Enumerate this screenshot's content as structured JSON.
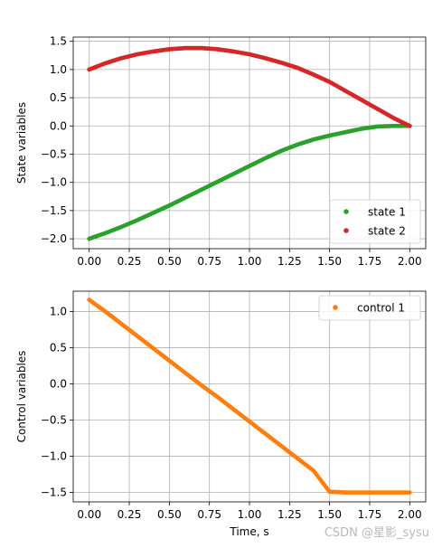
{
  "watermark": "CSDN @星影_sysu",
  "chart_data": [
    {
      "type": "scatter",
      "ylabel": "State variables",
      "xlim": [
        -0.1,
        2.1
      ],
      "ylim": [
        -2.175,
        1.575
      ],
      "xticks": [
        0.0,
        0.25,
        0.5,
        0.75,
        1.0,
        1.25,
        1.5,
        1.75,
        2.0
      ],
      "xtick_labels": [
        "0.00",
        "0.25",
        "0.50",
        "0.75",
        "1.00",
        "1.25",
        "1.50",
        "1.75",
        "2.00"
      ],
      "yticks": [
        -2.0,
        -1.5,
        -1.0,
        -0.5,
        0.0,
        0.5,
        1.0,
        1.5
      ],
      "ytick_labels": [
        "−2.0",
        "−1.5",
        "−1.0",
        "−0.5",
        "0.0",
        "0.5",
        "1.0",
        "1.5"
      ],
      "grid": true,
      "legend_position": "lower-right",
      "series": [
        {
          "name": "state 1",
          "color": "#2ca02c",
          "x": [
            0,
            0.1,
            0.2,
            0.3,
            0.4,
            0.5,
            0.6,
            0.7,
            0.8,
            0.9,
            1.0,
            1.1,
            1.2,
            1.3,
            1.4,
            1.5,
            1.6,
            1.7,
            1.8,
            1.9,
            2.0
          ],
          "y": [
            -2.0,
            -1.9,
            -1.79,
            -1.67,
            -1.54,
            -1.41,
            -1.27,
            -1.13,
            -0.99,
            -0.85,
            -0.71,
            -0.57,
            -0.44,
            -0.33,
            -0.24,
            -0.17,
            -0.11,
            -0.05,
            -0.01,
            0.0,
            0.0
          ]
        },
        {
          "name": "state 2",
          "color": "#d62728",
          "x": [
            0,
            0.1,
            0.2,
            0.3,
            0.4,
            0.5,
            0.6,
            0.7,
            0.8,
            0.9,
            1.0,
            1.1,
            1.2,
            1.3,
            1.4,
            1.5,
            1.6,
            1.7,
            1.8,
            1.9,
            2.0
          ],
          "y": [
            1.0,
            1.11,
            1.2,
            1.27,
            1.32,
            1.36,
            1.38,
            1.38,
            1.36,
            1.32,
            1.27,
            1.2,
            1.12,
            1.03,
            0.91,
            0.78,
            0.62,
            0.46,
            0.3,
            0.14,
            0.0
          ]
        }
      ]
    },
    {
      "type": "scatter",
      "xlabel": "Time, s",
      "ylabel": "Control variables",
      "xlim": [
        -0.1,
        2.1
      ],
      "ylim": [
        -1.63,
        1.28
      ],
      "xticks": [
        0.0,
        0.25,
        0.5,
        0.75,
        1.0,
        1.25,
        1.5,
        1.75,
        2.0
      ],
      "xtick_labels": [
        "0.00",
        "0.25",
        "0.50",
        "0.75",
        "1.00",
        "1.25",
        "1.50",
        "1.75",
        "2.00"
      ],
      "yticks": [
        -1.5,
        -1.0,
        -0.5,
        0.0,
        0.5,
        1.0
      ],
      "ytick_labels": [
        "−1.5",
        "−1.0",
        "−0.5",
        "0.0",
        "0.5",
        "1.0"
      ],
      "grid": true,
      "legend_position": "upper-right",
      "series": [
        {
          "name": "control 1",
          "color": "#ff7f0e",
          "x": [
            0,
            0.1,
            0.2,
            0.3,
            0.4,
            0.5,
            0.6,
            0.7,
            0.8,
            0.9,
            1.0,
            1.1,
            1.2,
            1.3,
            1.4,
            1.5,
            1.6,
            1.7,
            1.8,
            1.9,
            2.0
          ],
          "y": [
            1.16,
            1.0,
            0.83,
            0.66,
            0.49,
            0.32,
            0.15,
            -0.02,
            -0.18,
            -0.35,
            -0.52,
            -0.69,
            -0.86,
            -1.03,
            -1.2,
            -1.49,
            -1.5,
            -1.5,
            -1.5,
            -1.5,
            -1.5
          ]
        }
      ]
    }
  ]
}
